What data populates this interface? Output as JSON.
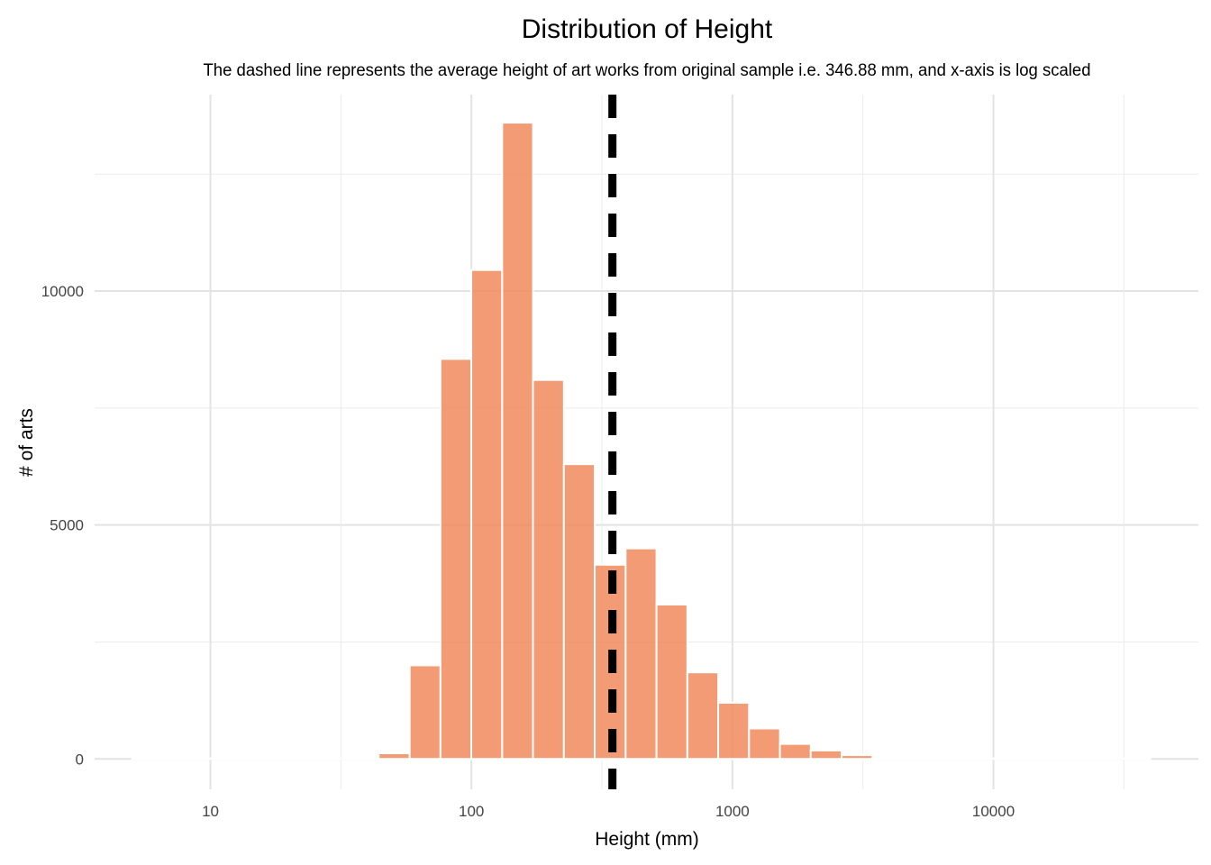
{
  "chart_data": {
    "type": "bar",
    "subtype": "histogram",
    "title": "Distribution of Height",
    "subtitle": "The dashed line represents the average height of art works from original sample i.e. 346.88 mm, and x-axis is log scaled",
    "xlabel": "Height (mm)",
    "ylabel": "# of arts",
    "x_scale": "log10",
    "x_ticks": [
      10,
      100,
      1000,
      10000
    ],
    "x_tick_labels": [
      "10",
      "100",
      "1000",
      "10000"
    ],
    "y_ticks": [
      0,
      5000,
      10000
    ],
    "y_tick_labels": [
      "0",
      "5000",
      "10000"
    ],
    "xlim": [
      3.6,
      61000
    ],
    "ylim": [
      -650,
      14200
    ],
    "grid": true,
    "legend": "none",
    "mean_line": {
      "value": 346.88,
      "style": "dashed",
      "color": "#000000"
    },
    "bars_color": "#f08a5d",
    "bins": [
      {
        "x0": 5.01,
        "x1": 6.57,
        "count": 0
      },
      {
        "x0": 6.57,
        "x1": 8.63,
        "count": 0
      },
      {
        "x0": 8.63,
        "x1": 11.3,
        "count": 0
      },
      {
        "x0": 11.3,
        "x1": 14.9,
        "count": 0
      },
      {
        "x0": 14.9,
        "x1": 19.5,
        "count": 0
      },
      {
        "x0": 19.5,
        "x1": 25.6,
        "count": 0
      },
      {
        "x0": 25.6,
        "x1": 33.6,
        "count": 5
      },
      {
        "x0": 33.6,
        "x1": 44.1,
        "count": 10
      },
      {
        "x0": 44.1,
        "x1": 58.0,
        "count": 120
      },
      {
        "x0": 58.0,
        "x1": 76.1,
        "count": 2000
      },
      {
        "x0": 76.1,
        "x1": 99.9,
        "count": 8550
      },
      {
        "x0": 99.9,
        "x1": 131.2,
        "count": 10450
      },
      {
        "x0": 131.2,
        "x1": 172.2,
        "count": 13600
      },
      {
        "x0": 172.2,
        "x1": 226.1,
        "count": 8100
      },
      {
        "x0": 226.1,
        "x1": 296.8,
        "count": 6300
      },
      {
        "x0": 296.8,
        "x1": 389.8,
        "count": 4150
      },
      {
        "x0": 389.8,
        "x1": 511.8,
        "count": 4500
      },
      {
        "x0": 511.8,
        "x1": 671.9,
        "count": 3300
      },
      {
        "x0": 671.9,
        "x1": 882.2,
        "count": 1850
      },
      {
        "x0": 882.2,
        "x1": 1158,
        "count": 1200
      },
      {
        "x0": 1158,
        "x1": 1521,
        "count": 650
      },
      {
        "x0": 1521,
        "x1": 1996,
        "count": 320
      },
      {
        "x0": 1996,
        "x1": 2621,
        "count": 180
      },
      {
        "x0": 2621,
        "x1": 3441,
        "count": 80
      },
      {
        "x0": 3441,
        "x1": 4518,
        "count": 30
      },
      {
        "x0": 4518,
        "x1": 5931,
        "count": 15
      },
      {
        "x0": 5931,
        "x1": 7787,
        "count": 5
      },
      {
        "x0": 7787,
        "x1": 10224,
        "count": 3
      },
      {
        "x0": 10224,
        "x1": 13423,
        "count": 2
      },
      {
        "x0": 13423,
        "x1": 17623,
        "count": 1
      },
      {
        "x0": 17623,
        "x1": 23138,
        "count": 1
      },
      {
        "x0": 23138,
        "x1": 30378,
        "count": 0
      },
      {
        "x0": 30378,
        "x1": 39884,
        "count": 0
      }
    ]
  }
}
